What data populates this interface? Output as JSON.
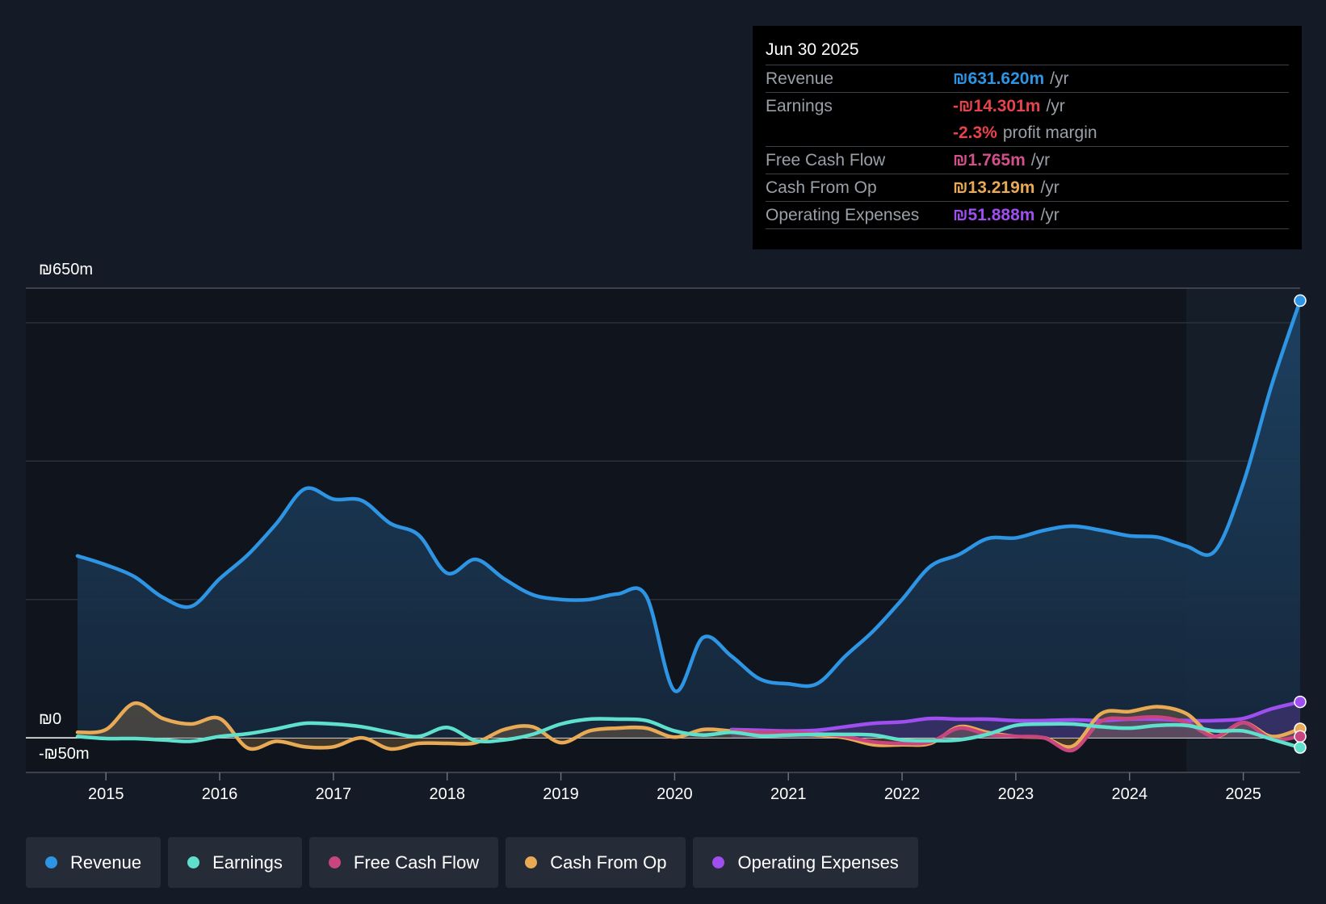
{
  "tooltip": {
    "date": "Jun 30 2025",
    "rows": [
      {
        "label": "Revenue",
        "value": "₪631.620m",
        "unit": "/yr",
        "color": "#2d95e3"
      },
      {
        "label": "Earnings",
        "value": "-₪14.301m",
        "unit": "/yr",
        "color": "#e8434c"
      },
      {
        "label": "",
        "value": "-2.3%",
        "unit": "profit margin",
        "color": "#e8434c"
      },
      {
        "label": "Free Cash Flow",
        "value": "₪1.765m",
        "unit": "/yr",
        "color": "#d2508b"
      },
      {
        "label": "Cash From Op",
        "value": "₪13.219m",
        "unit": "/yr",
        "color": "#e8aa55"
      },
      {
        "label": "Operating Expenses",
        "value": "₪51.888m",
        "unit": "/yr",
        "color": "#9f4ff0"
      }
    ]
  },
  "legend": [
    {
      "label": "Revenue",
      "color": "#2d95e3"
    },
    {
      "label": "Earnings",
      "color": "#5fe0cc"
    },
    {
      "label": "Free Cash Flow",
      "color": "#c8457f"
    },
    {
      "label": "Cash From Op",
      "color": "#e8aa55"
    },
    {
      "label": "Operating Expenses",
      "color": "#9f4ff0"
    }
  ],
  "chart_data": {
    "type": "line",
    "title": "",
    "xlabel": "",
    "ylabel": "",
    "y_axis_labels": {
      "top": "₪650m",
      "zero": "₪0",
      "bottom": "-₪50m"
    },
    "ylim": [
      -50,
      650
    ],
    "xlim": [
      2014.75,
      2025.5
    ],
    "x_ticks": [
      2015,
      2016,
      2017,
      2018,
      2019,
      2020,
      2021,
      2022,
      2023,
      2024,
      2025
    ],
    "forecast_start": 2024.5,
    "series": [
      {
        "name": "Revenue",
        "color": "#2d95e3",
        "fill": true,
        "points": [
          [
            2014.75,
            263
          ],
          [
            2015.0,
            250
          ],
          [
            2015.25,
            233
          ],
          [
            2015.5,
            203
          ],
          [
            2015.75,
            190
          ],
          [
            2016.0,
            230
          ],
          [
            2016.25,
            265
          ],
          [
            2016.5,
            310
          ],
          [
            2016.75,
            360
          ],
          [
            2017.0,
            345
          ],
          [
            2017.25,
            343
          ],
          [
            2017.5,
            310
          ],
          [
            2017.75,
            293
          ],
          [
            2018.0,
            238
          ],
          [
            2018.25,
            258
          ],
          [
            2018.5,
            230
          ],
          [
            2018.75,
            207
          ],
          [
            2019.0,
            200
          ],
          [
            2019.25,
            200
          ],
          [
            2019.5,
            208
          ],
          [
            2019.75,
            205
          ],
          [
            2020.0,
            68
          ],
          [
            2020.25,
            145
          ],
          [
            2020.5,
            118
          ],
          [
            2020.75,
            85
          ],
          [
            2021.0,
            78
          ],
          [
            2021.25,
            78
          ],
          [
            2021.5,
            118
          ],
          [
            2021.75,
            155
          ],
          [
            2022.0,
            200
          ],
          [
            2022.25,
            248
          ],
          [
            2022.5,
            265
          ],
          [
            2022.75,
            288
          ],
          [
            2023.0,
            289
          ],
          [
            2023.25,
            300
          ],
          [
            2023.5,
            306
          ],
          [
            2023.75,
            300
          ],
          [
            2024.0,
            292
          ],
          [
            2024.25,
            290
          ],
          [
            2024.5,
            277
          ],
          [
            2024.75,
            270
          ],
          [
            2025.0,
            368
          ],
          [
            2025.25,
            510
          ],
          [
            2025.5,
            632
          ]
        ]
      },
      {
        "name": "Earnings",
        "color": "#5fe0cc",
        "fill": false,
        "points": [
          [
            2014.75,
            2
          ],
          [
            2015.0,
            -1
          ],
          [
            2015.25,
            -1
          ],
          [
            2015.5,
            -3
          ],
          [
            2015.75,
            -5
          ],
          [
            2016.0,
            2
          ],
          [
            2016.25,
            6
          ],
          [
            2016.5,
            13
          ],
          [
            2016.75,
            21
          ],
          [
            2017.0,
            20
          ],
          [
            2017.25,
            16
          ],
          [
            2017.5,
            8
          ],
          [
            2017.75,
            2
          ],
          [
            2018.0,
            15
          ],
          [
            2018.25,
            -4
          ],
          [
            2018.5,
            -3
          ],
          [
            2018.75,
            5
          ],
          [
            2019.0,
            20
          ],
          [
            2019.25,
            27
          ],
          [
            2019.5,
            27
          ],
          [
            2019.75,
            25
          ],
          [
            2020.0,
            10
          ],
          [
            2020.25,
            4
          ],
          [
            2020.5,
            8
          ],
          [
            2020.75,
            3
          ],
          [
            2021.0,
            4
          ],
          [
            2021.25,
            5
          ],
          [
            2021.5,
            5
          ],
          [
            2021.75,
            4
          ],
          [
            2022.0,
            -3
          ],
          [
            2022.25,
            -4
          ],
          [
            2022.5,
            -3
          ],
          [
            2022.75,
            5
          ],
          [
            2023.0,
            18
          ],
          [
            2023.25,
            20
          ],
          [
            2023.5,
            20
          ],
          [
            2023.75,
            16
          ],
          [
            2024.0,
            14
          ],
          [
            2024.25,
            18
          ],
          [
            2024.5,
            18
          ],
          [
            2024.75,
            10
          ],
          [
            2025.0,
            10
          ],
          [
            2025.25,
            -2
          ],
          [
            2025.5,
            -14
          ]
        ]
      },
      {
        "name": "Free Cash Flow",
        "color": "#c8457f",
        "fill": false,
        "points": [
          [
            2020.5,
            10
          ],
          [
            2020.75,
            8
          ],
          [
            2021.0,
            8
          ],
          [
            2021.25,
            6
          ],
          [
            2021.5,
            2
          ],
          [
            2021.75,
            -6
          ],
          [
            2022.0,
            -8
          ],
          [
            2022.25,
            -6
          ],
          [
            2022.5,
            14
          ],
          [
            2022.75,
            5
          ],
          [
            2023.0,
            2
          ],
          [
            2023.25,
            0
          ],
          [
            2023.5,
            -18
          ],
          [
            2023.75,
            24
          ],
          [
            2024.0,
            28
          ],
          [
            2024.25,
            30
          ],
          [
            2024.5,
            22
          ],
          [
            2024.75,
            2
          ],
          [
            2025.0,
            22
          ],
          [
            2025.25,
            -2
          ],
          [
            2025.5,
            2
          ]
        ]
      },
      {
        "name": "Cash From Op",
        "color": "#e8aa55",
        "fill": true,
        "points": [
          [
            2014.75,
            8
          ],
          [
            2015.0,
            12
          ],
          [
            2015.25,
            50
          ],
          [
            2015.5,
            28
          ],
          [
            2015.75,
            20
          ],
          [
            2016.0,
            28
          ],
          [
            2016.25,
            -15
          ],
          [
            2016.5,
            -5
          ],
          [
            2016.75,
            -13
          ],
          [
            2017.0,
            -13
          ],
          [
            2017.25,
            0
          ],
          [
            2017.5,
            -16
          ],
          [
            2017.75,
            -8
          ],
          [
            2018.0,
            -8
          ],
          [
            2018.25,
            -7
          ],
          [
            2018.5,
            12
          ],
          [
            2018.75,
            16
          ],
          [
            2019.0,
            -7
          ],
          [
            2019.25,
            10
          ],
          [
            2019.5,
            14
          ],
          [
            2019.75,
            14
          ],
          [
            2020.0,
            1
          ],
          [
            2020.25,
            12
          ],
          [
            2020.5,
            10
          ],
          [
            2020.75,
            8
          ],
          [
            2021.0,
            6
          ],
          [
            2021.25,
            4
          ],
          [
            2021.5,
            0
          ],
          [
            2021.75,
            -10
          ],
          [
            2022.0,
            -10
          ],
          [
            2022.25,
            -8
          ],
          [
            2022.5,
            16
          ],
          [
            2022.75,
            8
          ],
          [
            2023.0,
            2
          ],
          [
            2023.25,
            0
          ],
          [
            2023.5,
            -12
          ],
          [
            2023.75,
            35
          ],
          [
            2024.0,
            38
          ],
          [
            2024.25,
            45
          ],
          [
            2024.5,
            35
          ],
          [
            2024.75,
            2
          ],
          [
            2025.0,
            22
          ],
          [
            2025.25,
            2
          ],
          [
            2025.5,
            13
          ]
        ]
      },
      {
        "name": "Operating Expenses",
        "color": "#9f4ff0",
        "fill": true,
        "points": [
          [
            2020.5,
            12
          ],
          [
            2020.75,
            11
          ],
          [
            2021.0,
            10
          ],
          [
            2021.25,
            11
          ],
          [
            2021.5,
            16
          ],
          [
            2021.75,
            21
          ],
          [
            2022.0,
            23
          ],
          [
            2022.25,
            28
          ],
          [
            2022.5,
            27
          ],
          [
            2022.75,
            27
          ],
          [
            2023.0,
            25
          ],
          [
            2023.25,
            25
          ],
          [
            2023.5,
            26
          ],
          [
            2023.75,
            25
          ],
          [
            2024.0,
            27
          ],
          [
            2024.25,
            27
          ],
          [
            2024.5,
            25
          ],
          [
            2024.75,
            25
          ],
          [
            2025.0,
            28
          ],
          [
            2025.25,
            42
          ],
          [
            2025.5,
            52
          ]
        ]
      }
    ]
  }
}
